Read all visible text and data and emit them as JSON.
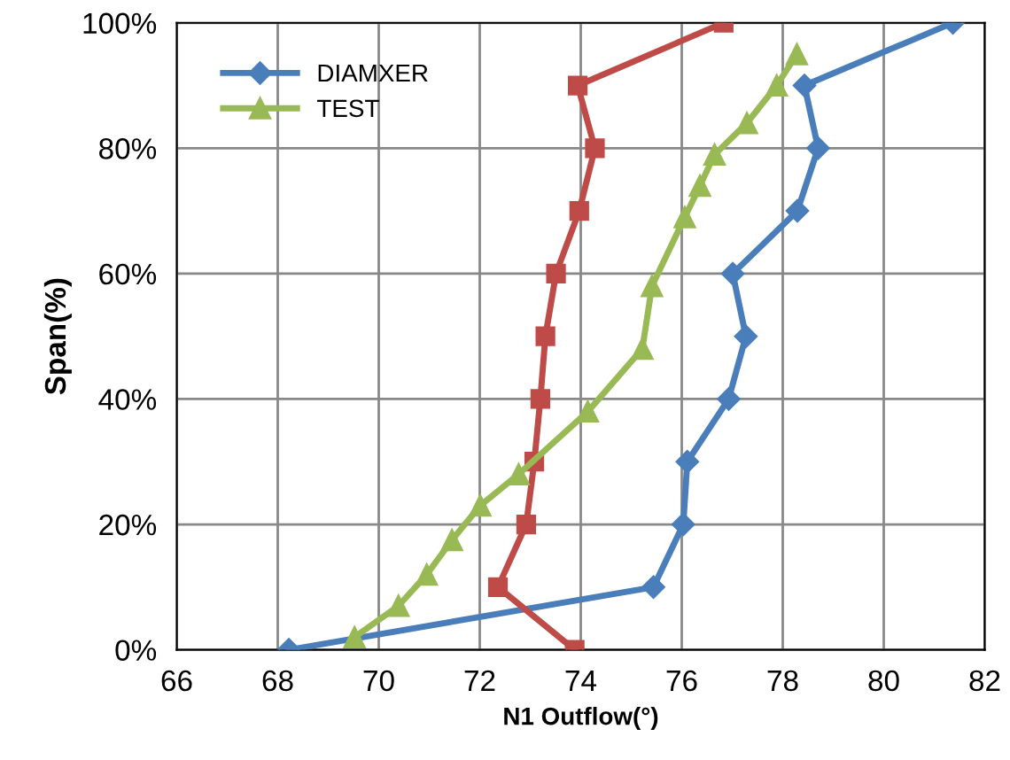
{
  "chart_data": {
    "type": "line",
    "xlabel": "N1 Outflow(°)",
    "ylabel": "Span(%)",
    "series": [
      {
        "name": "DIAMXER",
        "color": "#4a7ebb",
        "marker": "diamond",
        "x": [
          68.22,
          75.44,
          76.03,
          76.11,
          76.93,
          77.27,
          77.01,
          78.29,
          78.7,
          78.43,
          81.37
        ],
        "values": [
          0,
          10,
          20,
          30,
          40,
          50,
          60,
          70,
          80,
          90,
          100
        ]
      },
      {
        "color": "#be4b48",
        "marker": "square",
        "x": [
          73.88,
          72.36,
          72.92,
          73.08,
          73.2,
          73.3,
          73.51,
          73.97,
          74.28,
          73.94,
          76.83
        ],
        "values": [
          0,
          10,
          20,
          30,
          40,
          50,
          60,
          70,
          80,
          90,
          100
        ]
      },
      {
        "name": "TEST",
        "color": "#98b954",
        "marker": "triangle",
        "x": [
          69.52,
          70.39,
          70.95,
          71.45,
          72.01,
          72.77,
          74.14,
          75.22,
          75.41,
          76.06,
          76.36,
          76.65,
          77.29,
          77.88,
          78.28
        ],
        "values": [
          2,
          7,
          12,
          17.5,
          23,
          28,
          38,
          48,
          58,
          69,
          74,
          79,
          84,
          90,
          95
        ]
      }
    ],
    "xlim": [
      66,
      82
    ],
    "xticks": [
      66,
      68,
      70,
      72,
      74,
      76,
      78,
      80,
      82
    ],
    "ylim": [
      0,
      100
    ],
    "yticks": [
      {
        "value": 0,
        "label": "0%"
      },
      {
        "value": 20,
        "label": "20%"
      },
      {
        "value": 40,
        "label": "40%"
      },
      {
        "value": 60,
        "label": "60%"
      },
      {
        "value": 80,
        "label": "80%"
      },
      {
        "value": 100,
        "label": "100%"
      }
    ],
    "grid": true,
    "legend": "top left"
  }
}
